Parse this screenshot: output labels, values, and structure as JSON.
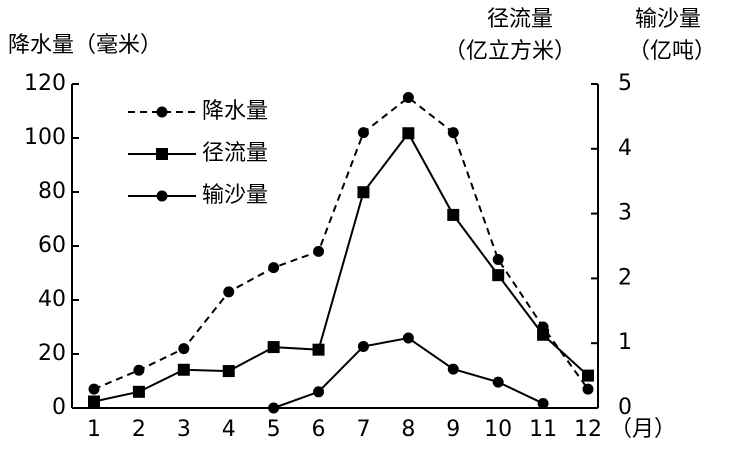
{
  "chart_data": {
    "type": "line",
    "y_title": "降水量（毫米）",
    "y2_title_line1": "径流量",
    "y2_title_line2": "（亿立方米）",
    "y3_title_line1": "输沙量",
    "y3_title_line2": "（亿吨）",
    "x_label": "（月）",
    "categories": [
      "1",
      "2",
      "3",
      "4",
      "5",
      "6",
      "7",
      "8",
      "9",
      "10",
      "11",
      "12"
    ],
    "ylim": [
      0,
      120
    ],
    "yticks": [
      0,
      20,
      40,
      60,
      80,
      100,
      120
    ],
    "y2lim": [
      0,
      5
    ],
    "y2ticks": [
      0,
      1,
      2,
      3,
      4,
      5
    ],
    "legend": "upper left",
    "series": [
      {
        "name": "降水量",
        "color": "#000000",
        "dash": true,
        "marker": "circle",
        "values": [
          7,
          14,
          22,
          43,
          52,
          58,
          102,
          115,
          102,
          55,
          30,
          7
        ]
      },
      {
        "name": "径流量",
        "color": "#000000",
        "dash": false,
        "marker": "square",
        "axis": "y2",
        "values": [
          0.1,
          0.25,
          0.59,
          0.57,
          0.94,
          0.9,
          3.33,
          4.24,
          2.98,
          2.05,
          1.13,
          0.5
        ]
      },
      {
        "name": "输沙量",
        "color": "#000000",
        "dash": false,
        "marker": "circle",
        "axis": "y2",
        "values": [
          null,
          null,
          null,
          null,
          0.0,
          0.25,
          0.95,
          1.08,
          0.6,
          0.4,
          0.07,
          null
        ]
      }
    ]
  }
}
